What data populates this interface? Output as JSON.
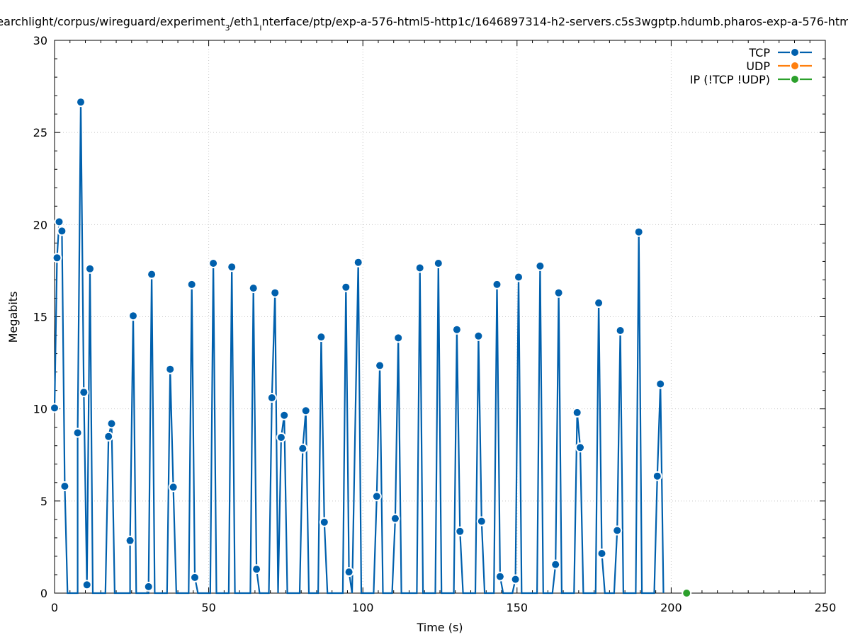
{
  "chart_data": {
    "type": "line",
    "title": "earchlight/corpus/wireguard/experiment_3/eth1_interface/ptp/exp-a-576-html5-http1c/1646897314-h2-servers.c5s3wgptp.hdumb.pharos-exp-a-576-htm",
    "title_parts": [
      {
        "text": "earchlight/corpus/wireguard/experiment",
        "sub": false
      },
      {
        "text": "3",
        "sub": true
      },
      {
        "text": "/eth1",
        "sub": false
      },
      {
        "text": "i",
        "sub": true
      },
      {
        "text": "nterface/ptp/exp-a-576-html5-http1c/1646897314-h2-servers.c5s3wgptp.hdumb.pharos-exp-a-576-htm",
        "sub": false
      }
    ],
    "xlabel": "Time (s)",
    "ylabel": "Megabits",
    "xlim": [
      0,
      250
    ],
    "ylim": [
      0,
      30
    ],
    "xticks": [
      "0",
      "50",
      "100",
      "150",
      "200",
      "250"
    ],
    "yticks": [
      "0",
      "5",
      "10",
      "15",
      "20",
      "25",
      "30"
    ],
    "grid": true,
    "legend_position": "top-right",
    "series": [
      {
        "name": "TCP",
        "color": "#0060ad",
        "points": [
          [
            0.0,
            10.05
          ],
          [
            0.8,
            18.2
          ],
          [
            1.5,
            20.15
          ],
          [
            2.4,
            19.65
          ],
          [
            3.3,
            5.8
          ],
          [
            4.2,
            0.0
          ],
          [
            7.5,
            0.0
          ],
          [
            7.5,
            8.7
          ],
          [
            8.5,
            26.65
          ],
          [
            9.5,
            10.9
          ],
          [
            10.5,
            0.45
          ],
          [
            11.5,
            17.6
          ],
          [
            12.4,
            0.0
          ],
          [
            16.5,
            0.0
          ],
          [
            17.5,
            8.5
          ],
          [
            18.5,
            9.2
          ],
          [
            19.5,
            0.0
          ],
          [
            24.5,
            0.0
          ],
          [
            24.5,
            2.85
          ],
          [
            25.5,
            15.05
          ],
          [
            26.5,
            0.0
          ],
          [
            30.5,
            0.0
          ],
          [
            30.5,
            0.35
          ],
          [
            31.5,
            17.3
          ],
          [
            32.5,
            0.0
          ],
          [
            36.5,
            0.0
          ],
          [
            37.5,
            12.15
          ],
          [
            38.5,
            5.75
          ],
          [
            39.5,
            0.0
          ],
          [
            43.5,
            0.0
          ],
          [
            44.5,
            16.75
          ],
          [
            45.5,
            0.85
          ],
          [
            46.5,
            0.0
          ],
          [
            50.5,
            0.0
          ],
          [
            51.5,
            17.9
          ],
          [
            52.5,
            0.0
          ],
          [
            56.5,
            0.0
          ],
          [
            57.5,
            17.7
          ],
          [
            58.5,
            0.0
          ],
          [
            63.5,
            0.0
          ],
          [
            64.5,
            16.55
          ],
          [
            65.5,
            1.3
          ],
          [
            66.5,
            0.0
          ],
          [
            69.5,
            0.0
          ],
          [
            70.5,
            10.6
          ],
          [
            71.5,
            16.3
          ],
          [
            72.5,
            0.0
          ],
          [
            73.5,
            8.45
          ],
          [
            74.5,
            9.65
          ],
          [
            75.5,
            0.0
          ],
          [
            79.5,
            0.0
          ],
          [
            80.5,
            7.85
          ],
          [
            81.5,
            9.9
          ],
          [
            82.5,
            0.0
          ],
          [
            85.5,
            0.0
          ],
          [
            86.5,
            13.9
          ],
          [
            87.5,
            3.85
          ],
          [
            88.5,
            0.0
          ],
          [
            93.5,
            0.0
          ],
          [
            94.5,
            16.6
          ],
          [
            95.5,
            1.15
          ],
          [
            96.5,
            0.0
          ],
          [
            98.5,
            17.95
          ],
          [
            99.5,
            0.0
          ],
          [
            103.5,
            0.0
          ],
          [
            104.5,
            5.25
          ],
          [
            105.5,
            12.35
          ],
          [
            106.5,
            0.0
          ],
          [
            109.5,
            0.0
          ],
          [
            110.5,
            4.05
          ],
          [
            111.5,
            13.85
          ],
          [
            112.5,
            0.0
          ],
          [
            117.5,
            0.0
          ],
          [
            118.5,
            17.65
          ],
          [
            119.5,
            0.0
          ],
          [
            123.5,
            0.0
          ],
          [
            124.5,
            17.9
          ],
          [
            125.5,
            0.0
          ],
          [
            129.5,
            0.0
          ],
          [
            130.5,
            14.3
          ],
          [
            131.5,
            3.35
          ],
          [
            132.5,
            0.0
          ],
          [
            136.5,
            0.0
          ],
          [
            137.5,
            13.95
          ],
          [
            138.5,
            3.9
          ],
          [
            139.5,
            0.0
          ],
          [
            142.5,
            0.0
          ],
          [
            143.5,
            16.75
          ],
          [
            144.5,
            0.9
          ],
          [
            145.5,
            0.0
          ],
          [
            148.5,
            0.0
          ],
          [
            149.5,
            0.75
          ],
          [
            150.5,
            17.15
          ],
          [
            151.5,
            0.0
          ],
          [
            156.5,
            0.0
          ],
          [
            157.5,
            17.75
          ],
          [
            158.5,
            0.0
          ],
          [
            161.5,
            0.0
          ],
          [
            162.5,
            1.55
          ],
          [
            163.5,
            16.3
          ],
          [
            164.5,
            0.0
          ],
          [
            168.5,
            0.0
          ],
          [
            169.5,
            9.8
          ],
          [
            170.5,
            7.9
          ],
          [
            171.5,
            0.0
          ],
          [
            175.5,
            0.0
          ],
          [
            176.5,
            15.75
          ],
          [
            177.5,
            2.15
          ],
          [
            178.5,
            0.0
          ],
          [
            181.5,
            0.0
          ],
          [
            182.5,
            3.4
          ],
          [
            183.5,
            14.25
          ],
          [
            184.5,
            0.0
          ],
          [
            188.5,
            0.0
          ],
          [
            189.5,
            19.6
          ],
          [
            190.5,
            0.0
          ],
          [
            194.5,
            0.0
          ],
          [
            195.5,
            6.35
          ],
          [
            196.5,
            11.35
          ],
          [
            197.5,
            0.0
          ]
        ],
        "markers": [
          [
            0.0,
            10.05
          ],
          [
            0.8,
            18.2
          ],
          [
            1.5,
            20.15
          ],
          [
            2.4,
            19.65
          ],
          [
            3.3,
            5.8
          ],
          [
            7.5,
            8.7
          ],
          [
            8.5,
            26.65
          ],
          [
            9.5,
            10.9
          ],
          [
            10.5,
            0.45
          ],
          [
            11.5,
            17.6
          ],
          [
            17.5,
            8.5
          ],
          [
            18.5,
            9.2
          ],
          [
            24.5,
            2.85
          ],
          [
            25.5,
            15.05
          ],
          [
            30.5,
            0.35
          ],
          [
            31.5,
            17.3
          ],
          [
            37.5,
            12.15
          ],
          [
            38.5,
            5.75
          ],
          [
            44.5,
            16.75
          ],
          [
            45.5,
            0.85
          ],
          [
            51.5,
            17.9
          ],
          [
            57.5,
            17.7
          ],
          [
            64.5,
            16.55
          ],
          [
            65.5,
            1.3
          ],
          [
            70.5,
            10.6
          ],
          [
            71.5,
            16.3
          ],
          [
            73.5,
            8.45
          ],
          [
            74.5,
            9.65
          ],
          [
            80.5,
            7.85
          ],
          [
            81.5,
            9.9
          ],
          [
            86.5,
            13.9
          ],
          [
            87.5,
            3.85
          ],
          [
            94.5,
            16.6
          ],
          [
            95.5,
            1.15
          ],
          [
            98.5,
            17.95
          ],
          [
            104.5,
            5.25
          ],
          [
            105.5,
            12.35
          ],
          [
            110.5,
            4.05
          ],
          [
            111.5,
            13.85
          ],
          [
            118.5,
            17.65
          ],
          [
            124.5,
            17.9
          ],
          [
            130.5,
            14.3
          ],
          [
            131.5,
            3.35
          ],
          [
            137.5,
            13.95
          ],
          [
            138.5,
            3.9
          ],
          [
            143.5,
            16.75
          ],
          [
            144.5,
            0.9
          ],
          [
            149.5,
            0.75
          ],
          [
            150.5,
            17.15
          ],
          [
            157.5,
            17.75
          ],
          [
            162.5,
            1.55
          ],
          [
            163.5,
            16.3
          ],
          [
            169.5,
            9.8
          ],
          [
            170.5,
            7.9
          ],
          [
            176.5,
            15.75
          ],
          [
            177.5,
            2.15
          ],
          [
            182.5,
            3.4
          ],
          [
            183.5,
            14.25
          ],
          [
            189.5,
            19.6
          ],
          [
            195.5,
            6.35
          ],
          [
            196.5,
            11.35
          ]
        ]
      },
      {
        "name": "UDP",
        "color": "#ff7f0e",
        "points": [],
        "markers": []
      },
      {
        "name": "IP (!TCP  !UDP)",
        "color": "#2ca02c",
        "points": [],
        "markers": [
          [
            205.0,
            0.0
          ]
        ]
      }
    ]
  }
}
